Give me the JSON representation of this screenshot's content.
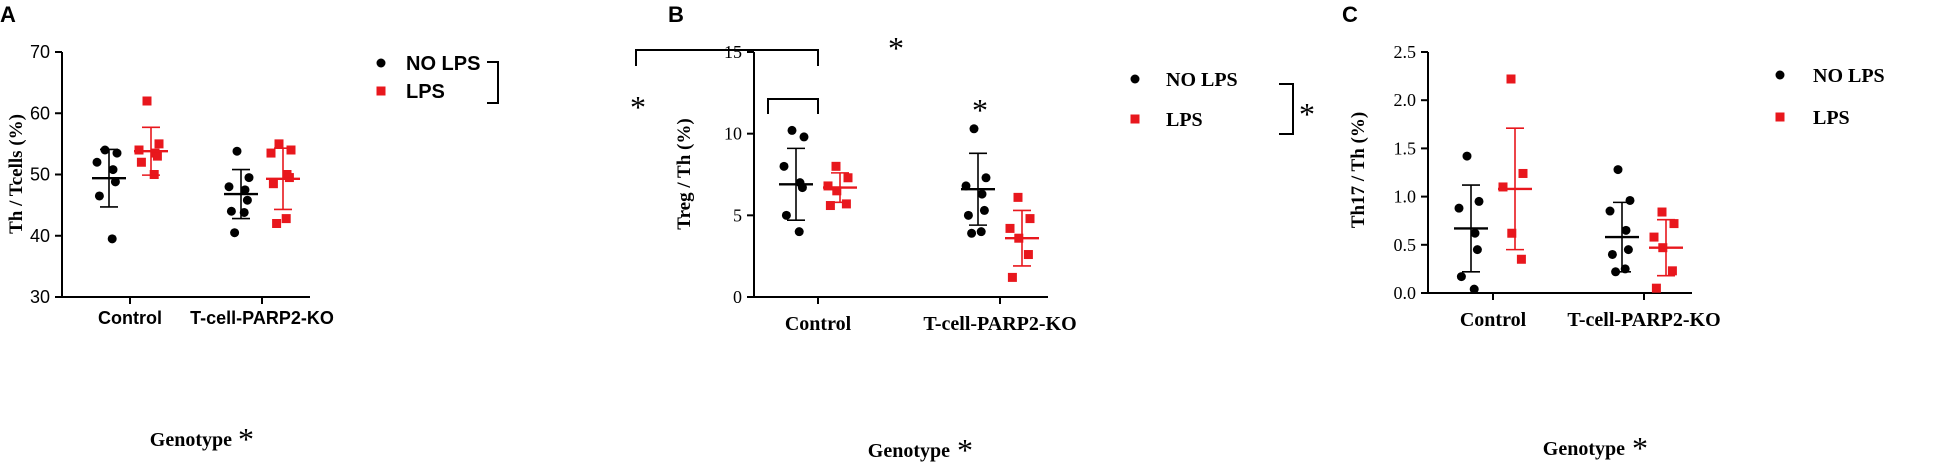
{
  "colors": {
    "no_lps": "#000000",
    "lps": "#e8171d",
    "axis": "#000000"
  },
  "chart_data": [
    {
      "type": "scatter",
      "panel_label": "A",
      "ylabel": "Th / Tcells (%)",
      "xlabel": "Genotype",
      "xlabel_mark": "*",
      "ylim": [
        30,
        70
      ],
      "yticks": [
        30,
        40,
        50,
        60,
        70
      ],
      "categories": [
        "Control",
        "T-cell-PARP2-KO"
      ],
      "legend": {
        "placement": "top-right",
        "mark": "*"
      },
      "series": [
        {
          "name": "NO LPS",
          "marker": "circle",
          "points": [
            [
              54.0,
              53.5,
              52.0,
              50.8,
              48.8,
              46.5,
              39.5
            ],
            [
              53.8,
              49.5,
              48.0,
              47.5,
              45.8,
              44.0,
              43.8,
              40.5
            ]
          ],
          "means": [
            49.4,
            46.8
          ],
          "sd": [
            4.7,
            4.0
          ]
        },
        {
          "name": "LPS",
          "marker": "square",
          "points": [
            [
              62.0,
              55.0,
              54.0,
              53.5,
              53.0,
              52.0,
              50.0
            ],
            [
              55.0,
              54.0,
              53.5,
              50.0,
              49.5,
              48.5,
              42.8,
              42.0
            ]
          ],
          "means": [
            53.8,
            49.3
          ],
          "sd": [
            3.9,
            5.0
          ]
        }
      ]
    },
    {
      "type": "scatter",
      "panel_label": "B",
      "ylabel": "Treg / Th (%)",
      "xlabel": "Genotype",
      "xlabel_mark": "*",
      "ylim": [
        0,
        15
      ],
      "yticks": [
        0,
        5,
        10,
        15
      ],
      "categories": [
        "Control",
        "T-cell-PARP2-KO"
      ],
      "legend": {
        "placement": "top-right",
        "mark": "*"
      },
      "significance": [
        {
          "between": "Control NO LPS vs T-cell-PARP2-KO LPS",
          "label": "*"
        },
        {
          "between": "T-cell-PARP2-KO NO LPS vs LPS",
          "label": "*"
        }
      ],
      "series": [
        {
          "name": "NO LPS",
          "marker": "circle",
          "points": [
            [
              10.2,
              9.8,
              8.0,
              7.0,
              6.7,
              5.0,
              4.0
            ],
            [
              10.3,
              7.3,
              6.8,
              6.3,
              5.3,
              5.0,
              4.0,
              3.9
            ]
          ],
          "means": [
            6.9,
            6.6
          ],
          "sd": [
            2.2,
            2.2
          ]
        },
        {
          "name": "LPS",
          "marker": "square",
          "points": [
            [
              8.0,
              7.3,
              6.8,
              6.5,
              5.7,
              5.6
            ],
            [
              6.1,
              4.8,
              4.2,
              3.6,
              2.6,
              1.2
            ]
          ],
          "means": [
            6.7,
            3.6
          ],
          "sd": [
            0.9,
            1.7
          ]
        }
      ]
    },
    {
      "type": "scatter",
      "panel_label": "C",
      "ylabel": "Th17 / Th (%)",
      "xlabel": "Genotype",
      "xlabel_mark": "*",
      "ylim": [
        0,
        2.5
      ],
      "yticks": [
        "0.0",
        "0.5",
        "1.0",
        "1.5",
        "2.0",
        "2.5"
      ],
      "categories": [
        "Control",
        "T-cell-PARP2-KO"
      ],
      "legend": {
        "placement": "top-right"
      },
      "series": [
        {
          "name": "NO LPS",
          "marker": "circle",
          "points": [
            [
              1.42,
              0.95,
              0.88,
              0.62,
              0.45,
              0.17,
              0.04
            ],
            [
              1.28,
              0.96,
              0.85,
              0.65,
              0.45,
              0.4,
              0.25,
              0.22
            ]
          ],
          "means": [
            0.67,
            0.58
          ],
          "sd": [
            0.45,
            0.36
          ]
        },
        {
          "name": "LPS",
          "marker": "square",
          "points": [
            [
              2.22,
              1.24,
              1.1,
              0.62,
              0.35
            ],
            [
              0.84,
              0.72,
              0.58,
              0.47,
              0.23,
              0.05
            ]
          ],
          "means": [
            1.08,
            0.47
          ],
          "sd": [
            0.63,
            0.29
          ]
        }
      ]
    }
  ]
}
